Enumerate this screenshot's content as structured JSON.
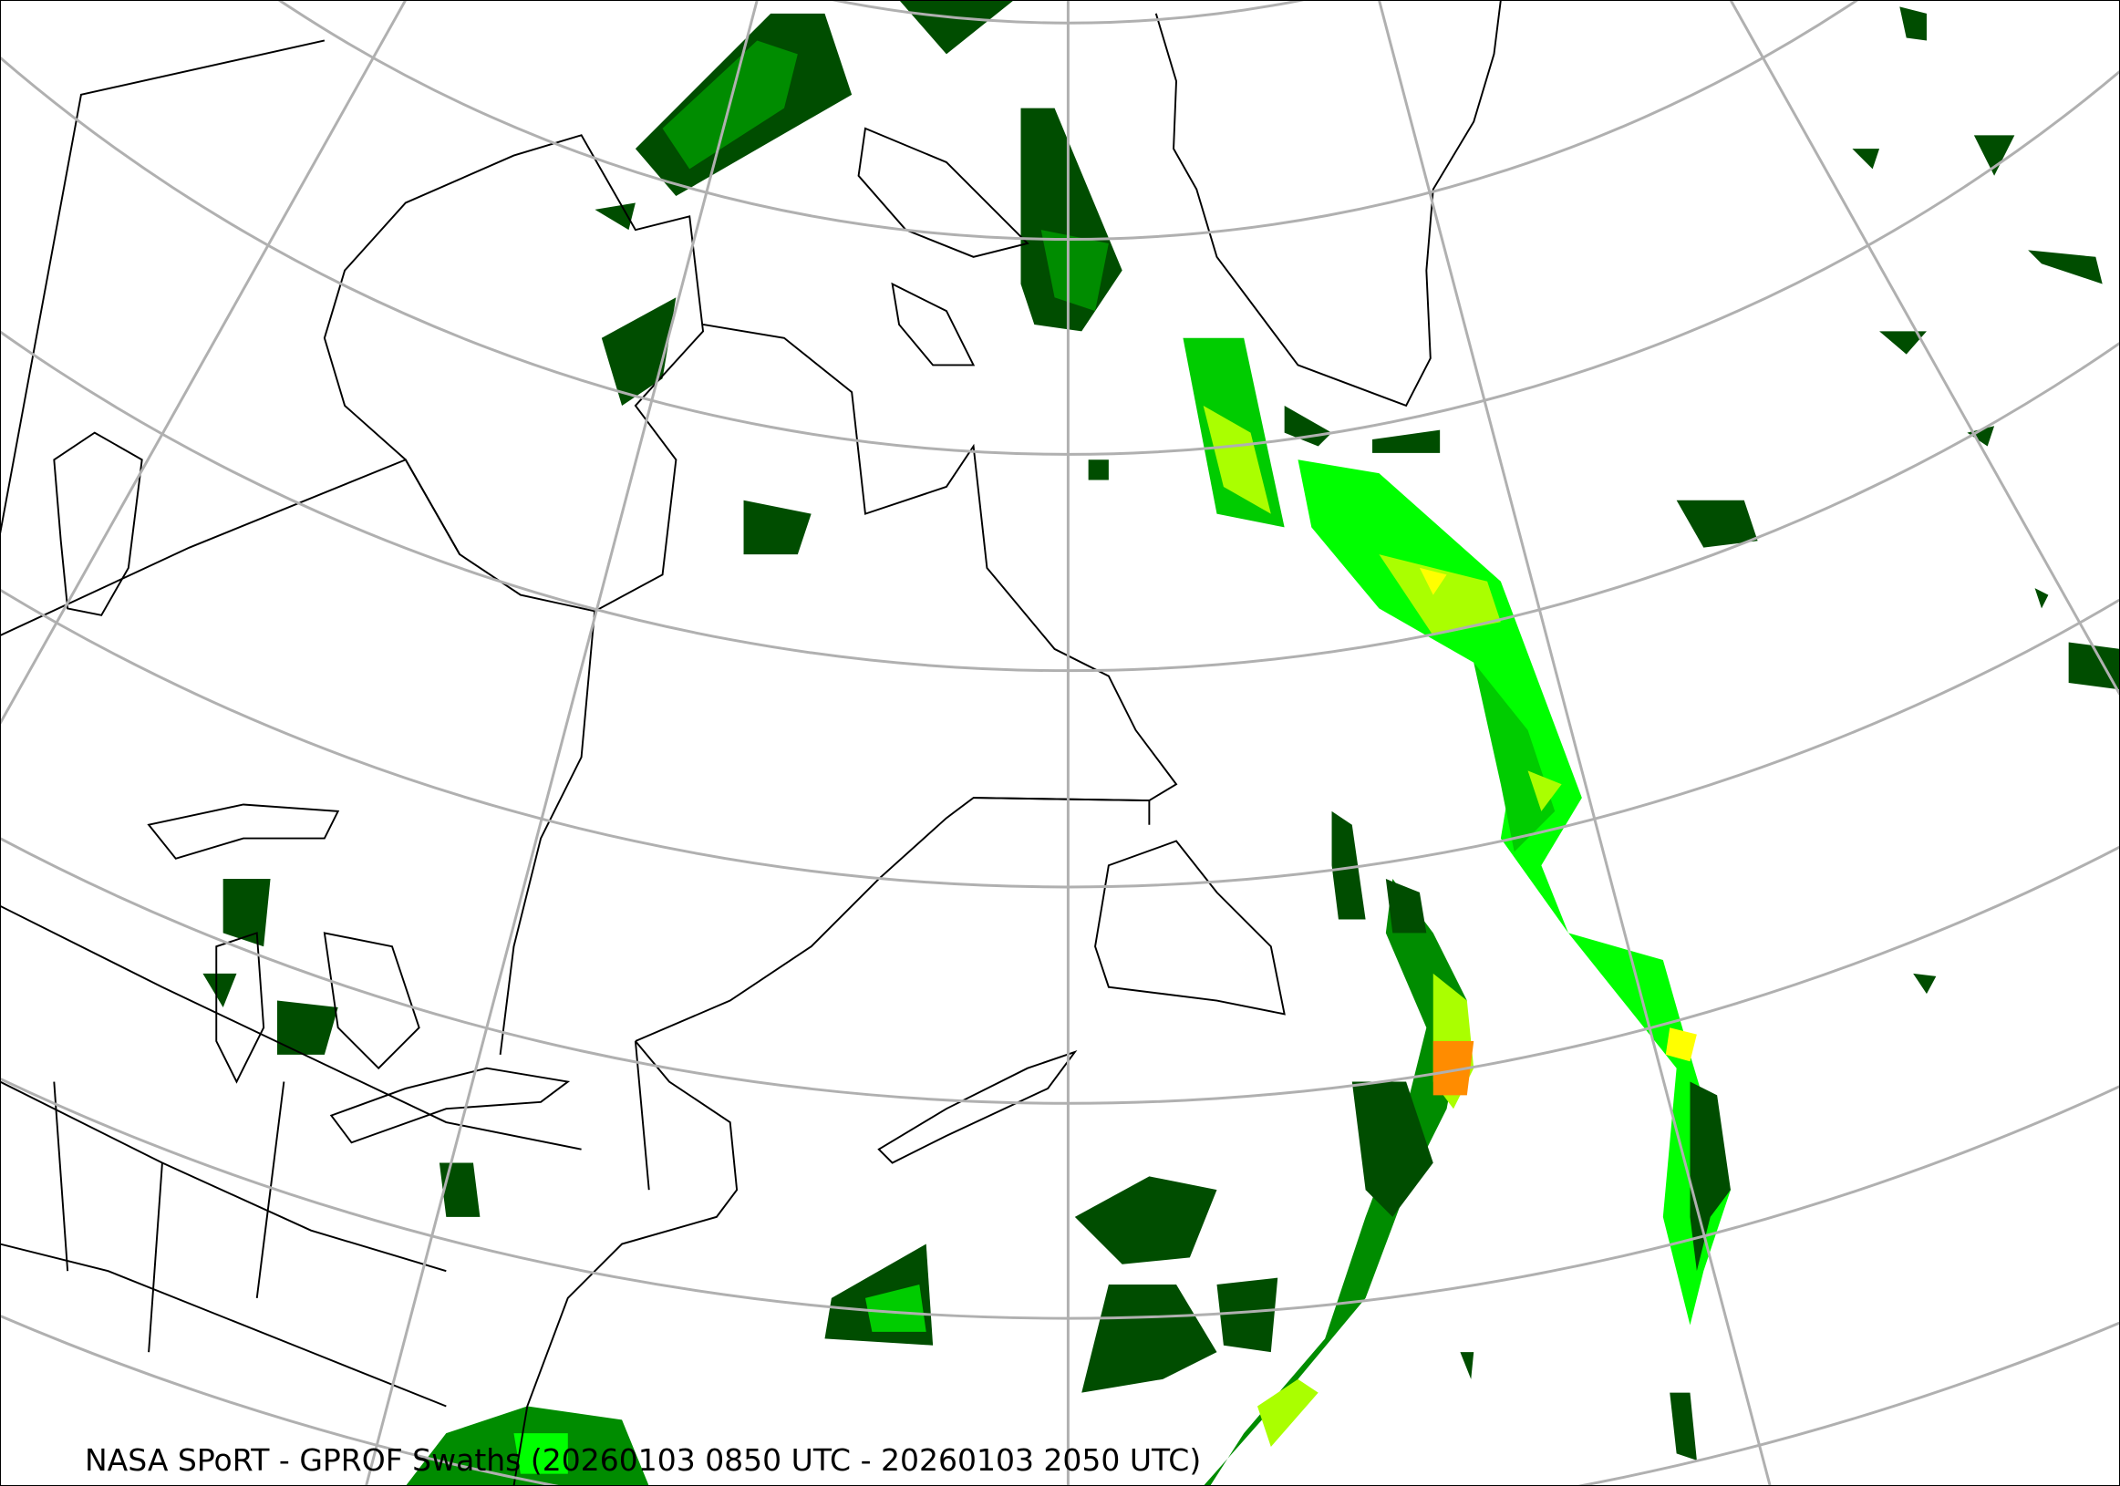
{
  "title": "NASA SPoRT - GPROF Swaths (20260103 0850 UTC - 20260103 2050 UTC)",
  "colors": {
    "graticule": "#b0b0b0",
    "coastline": "#000000",
    "precip_levels": [
      "#004d00",
      "#008c00",
      "#00cc00",
      "#00ff00",
      "#aaff00",
      "#ffff00",
      "#ff8c00"
    ]
  }
}
